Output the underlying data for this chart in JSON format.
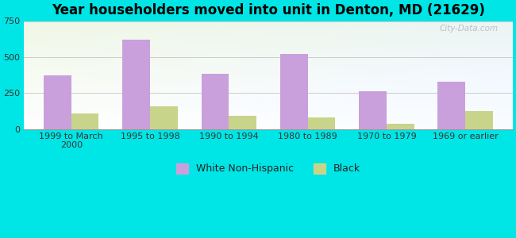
{
  "categories": [
    "1999 to March\n2000",
    "1995 to 1998",
    "1990 to 1994",
    "1980 to 1989",
    "1970 to 1979",
    "1969 or earlier"
  ],
  "white_values": [
    370,
    620,
    385,
    520,
    265,
    330
  ],
  "black_values": [
    110,
    155,
    90,
    80,
    35,
    125
  ],
  "white_color": "#c9a0dc",
  "black_color": "#c8d48a",
  "title": "Year householders moved into unit in Denton, MD (21629)",
  "ylim": [
    0,
    750
  ],
  "yticks": [
    0,
    250,
    500,
    750
  ],
  "bar_width": 0.35,
  "background_outer": "#00e5e5",
  "grid_color": "#cccccc",
  "title_fontsize": 12,
  "tick_fontsize": 8,
  "legend_fontsize": 9,
  "watermark": "City-Data.com"
}
